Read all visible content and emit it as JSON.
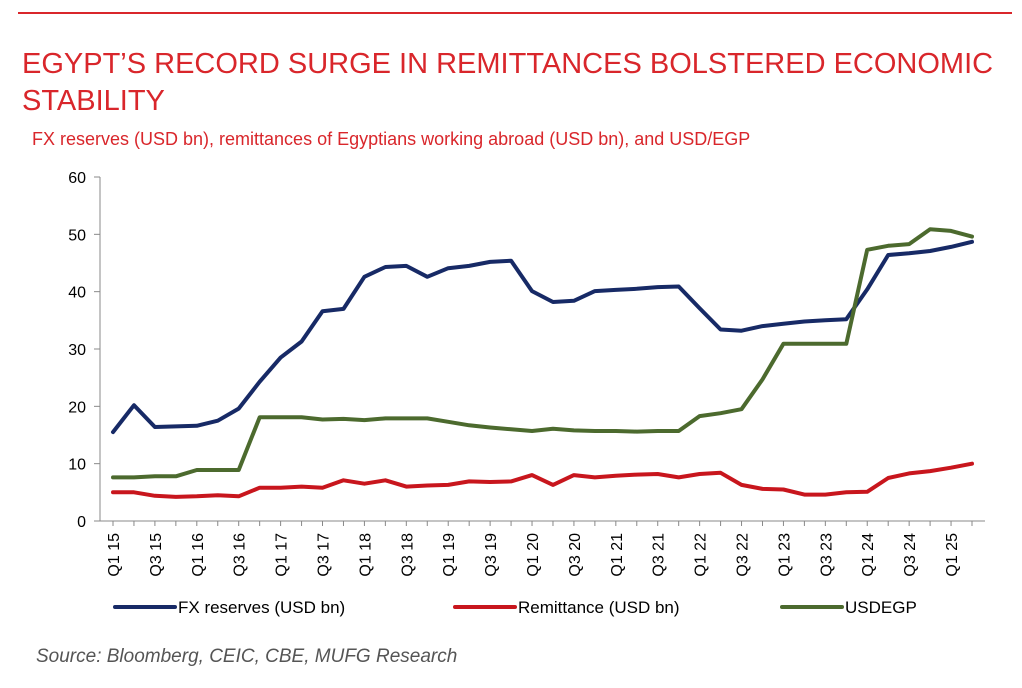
{
  "header": {
    "title": "EGYPT’S RECORD SURGE IN REMITTANCES BOLSTERED ECONOMIC STABILITY",
    "subtitle": "FX reserves (USD bn), remittances of Egyptians working abroad (USD bn), and USD/EGP"
  },
  "footer": {
    "source": "Source: Bloomberg, CEIC, CBE, MUFG Research"
  },
  "colors": {
    "accent": "#d9262b"
  },
  "chart_data": {
    "type": "line",
    "ylim": [
      0,
      60
    ],
    "yticks": [
      0,
      10,
      20,
      30,
      40,
      50,
      60
    ],
    "legend_position": "bottom",
    "grid": false,
    "x": [
      "Q1 15",
      "Q2 15",
      "Q3 15",
      "Q4 15",
      "Q1 16",
      "Q2 16",
      "Q3 16",
      "Q4 16",
      "Q1 17",
      "Q2 17",
      "Q3 17",
      "Q4 17",
      "Q1 18",
      "Q2 18",
      "Q3 18",
      "Q4 18",
      "Q1 19",
      "Q2 19",
      "Q3 19",
      "Q4 19",
      "Q1 20",
      "Q2 20",
      "Q3 20",
      "Q4 20",
      "Q1 21",
      "Q2 21",
      "Q3 21",
      "Q4 21",
      "Q1 22",
      "Q2 22",
      "Q3 22",
      "Q4 22",
      "Q1 23",
      "Q2 23",
      "Q3 23",
      "Q4 23",
      "Q1 24",
      "Q2 24",
      "Q3 24",
      "Q4 24",
      "Q1 25",
      "Q2 25"
    ],
    "xtick_labels": [
      "Q1 15",
      "Q3 15",
      "Q1 16",
      "Q3 16",
      "Q1 17",
      "Q3 17",
      "Q1 18",
      "Q3 18",
      "Q1 19",
      "Q3 19",
      "Q1 20",
      "Q3 20",
      "Q1 21",
      "Q3 21",
      "Q1 22",
      "Q3 22",
      "Q1 23",
      "Q3 23",
      "Q1 24",
      "Q3 24",
      "Q1 25"
    ],
    "series": [
      {
        "name": "FX reserves (USD bn)",
        "color": "#172a66",
        "values": [
          15.5,
          20.2,
          16.4,
          16.5,
          16.6,
          17.5,
          19.6,
          24.3,
          28.5,
          31.3,
          36.6,
          37.0,
          42.6,
          44.3,
          44.5,
          42.6,
          44.1,
          44.5,
          45.2,
          45.4,
          40.1,
          38.2,
          38.4,
          40.1,
          40.3,
          40.5,
          40.8,
          40.9,
          37.1,
          33.4,
          33.2,
          34.0,
          34.4,
          34.8,
          35.0,
          35.2,
          40.4,
          46.4,
          46.7,
          47.1,
          47.8,
          48.7
        ]
      },
      {
        "name": "Remittance (USD bn)",
        "color": "#c8161d",
        "values": [
          5.0,
          5.0,
          4.4,
          4.2,
          4.3,
          4.5,
          4.3,
          5.8,
          5.8,
          6.0,
          5.8,
          7.1,
          6.5,
          7.1,
          6.0,
          6.2,
          6.3,
          6.9,
          6.8,
          6.9,
          8.0,
          6.3,
          8.0,
          7.6,
          7.9,
          8.1,
          8.2,
          7.6,
          8.2,
          8.4,
          6.3,
          5.6,
          5.5,
          4.6,
          4.6,
          5.0,
          5.1,
          7.5,
          8.3,
          8.7,
          9.3,
          10.0
        ]
      },
      {
        "name": "USDEGP",
        "color": "#4c6a2e",
        "values": [
          7.6,
          7.6,
          7.8,
          7.8,
          8.9,
          8.9,
          8.9,
          18.1,
          18.1,
          18.1,
          17.7,
          17.8,
          17.6,
          17.9,
          17.9,
          17.9,
          17.3,
          16.7,
          16.3,
          16.0,
          15.7,
          16.1,
          15.8,
          15.7,
          15.7,
          15.6,
          15.7,
          15.7,
          18.3,
          18.8,
          19.5,
          24.7,
          30.9,
          30.9,
          30.9,
          30.9,
          47.3,
          48.0,
          48.3,
          50.9,
          50.6,
          49.6
        ]
      }
    ]
  }
}
